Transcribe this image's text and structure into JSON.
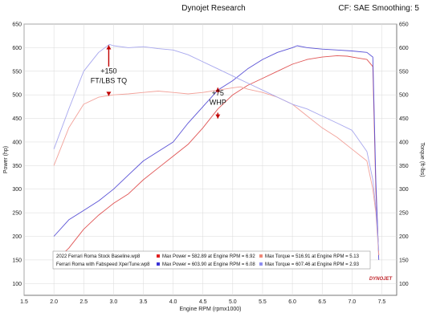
{
  "header": {
    "title": "Dynojet Research",
    "right": "CF: SAE Smoothing: 5"
  },
  "chart_data": {
    "type": "line",
    "xlabel": "Engine RPM (rpmx1000)",
    "ylabel_left": "Power (hp)",
    "ylabel_right": "Torque (ft-lbs)",
    "xlim": [
      1.5,
      7.75
    ],
    "ylim": [
      75,
      650
    ],
    "xticks": [
      "1.5",
      "2.0",
      "2.5",
      "3.0",
      "3.5",
      "4.0",
      "4.5",
      "5.0",
      "5.5",
      "6.0",
      "6.5",
      "7.0",
      "7.5"
    ],
    "yticks": [
      "100",
      "150",
      "200",
      "250",
      "300",
      "350",
      "400",
      "450",
      "500",
      "550",
      "600",
      "650"
    ],
    "grid": true,
    "annotations": [
      {
        "text": "+150",
        "x": 2.92,
        "y": 545
      },
      {
        "text": "FT/LBS TQ",
        "x": 2.92,
        "y": 525
      },
      {
        "text": "+75",
        "x": 4.75,
        "y": 499
      },
      {
        "text": "WHP",
        "x": 4.75,
        "y": 479
      }
    ],
    "series": [
      {
        "name": "Ferrari Roma Stock Baseline.wp8 – Power",
        "color": "#e05555",
        "x": [
          2.0,
          2.25,
          2.5,
          2.75,
          3.0,
          3.25,
          3.5,
          3.75,
          4.0,
          4.25,
          4.5,
          4.75,
          5.0,
          5.25,
          5.5,
          5.75,
          6.0,
          6.25,
          6.5,
          6.75,
          6.92,
          7.1,
          7.25,
          7.35,
          7.4,
          7.45
        ],
        "values": [
          145,
          175,
          215,
          245,
          270,
          290,
          320,
          345,
          370,
          395,
          430,
          470,
          500,
          520,
          535,
          550,
          565,
          575,
          580,
          583,
          582,
          578,
          575,
          560,
          300,
          160
        ]
      },
      {
        "name": "Ferrari Roma with Fabspeed XperTune.wp8 – Power",
        "color": "#5a52d6",
        "x": [
          2.0,
          2.25,
          2.5,
          2.75,
          3.0,
          3.25,
          3.5,
          3.75,
          4.0,
          4.25,
          4.5,
          4.75,
          5.0,
          5.25,
          5.5,
          5.75,
          6.0,
          6.08,
          6.25,
          6.5,
          6.75,
          7.0,
          7.25,
          7.35,
          7.4,
          7.45
        ],
        "values": [
          200,
          235,
          255,
          275,
          300,
          330,
          360,
          380,
          400,
          440,
          475,
          510,
          530,
          555,
          575,
          590,
          600,
          604,
          600,
          597,
          595,
          593,
          590,
          580,
          320,
          150
        ]
      },
      {
        "name": "Ferrari Roma Stock Baseline.wp8 – Torque",
        "color": "#f2a29a",
        "x": [
          2.0,
          2.25,
          2.5,
          2.75,
          3.0,
          3.25,
          3.5,
          3.75,
          4.0,
          4.25,
          4.5,
          4.75,
          5.0,
          5.13,
          5.25,
          5.5,
          5.75,
          6.0,
          6.25,
          6.5,
          6.75,
          7.0,
          7.25,
          7.35,
          7.4,
          7.45
        ],
        "values": [
          350,
          430,
          480,
          495,
          500,
          502,
          505,
          508,
          505,
          502,
          505,
          510,
          515,
          517,
          512,
          505,
          495,
          480,
          455,
          430,
          410,
          385,
          360,
          300,
          250,
          160
        ]
      },
      {
        "name": "Ferrari Roma with Fabspeed XperTune.wp8 – Torque",
        "color": "#a8a8ee",
        "x": [
          2.0,
          2.25,
          2.5,
          2.75,
          2.93,
          3.0,
          3.25,
          3.5,
          3.75,
          4.0,
          4.25,
          4.5,
          4.75,
          5.0,
          5.25,
          5.5,
          5.75,
          6.0,
          6.25,
          6.5,
          6.75,
          7.0,
          7.25,
          7.35,
          7.4,
          7.45
        ],
        "values": [
          385,
          470,
          550,
          590,
          607,
          604,
          600,
          602,
          598,
          595,
          585,
          570,
          555,
          540,
          525,
          510,
          495,
          480,
          470,
          455,
          440,
          425,
          380,
          320,
          260,
          170
        ]
      }
    ],
    "legend": [
      {
        "file": "2022 Ferrari Roma Stock Baseline.wp8",
        "power_color": "#e02020",
        "power_text": "Max Power = 582.89 at Engine RPM = 6.92",
        "torque_color": "#f08878",
        "torque_text": "Max Torque = 516.91 at Engine RPM = 5.13"
      },
      {
        "file": "Ferrari Roma with Fabspeed XperTune.wp8",
        "power_color": "#3a33d6",
        "power_text": "Max Power = 603.90 at Engine RPM = 6.08",
        "torque_color": "#8f8ff0",
        "torque_text": "Max Torque = 607.46 at Engine RPM = 2.93"
      }
    ],
    "legend_position": "bottom-left",
    "logo": "DYNOJET"
  }
}
